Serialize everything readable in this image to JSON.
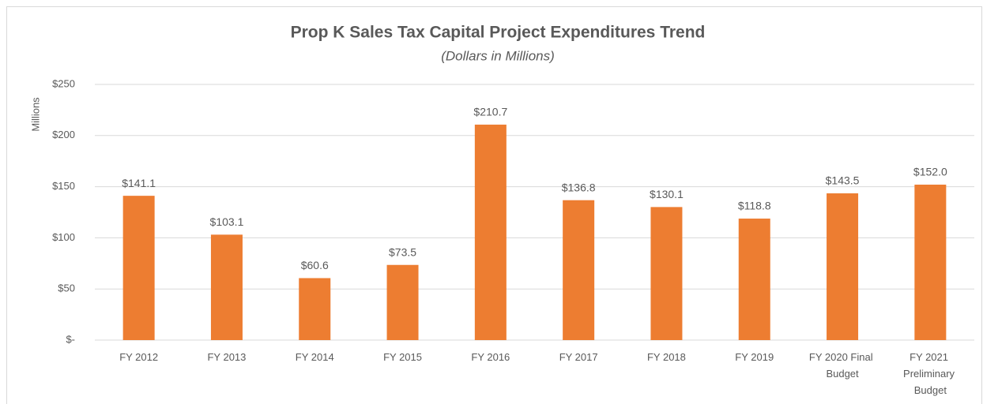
{
  "chart_data": {
    "type": "bar",
    "title": "Prop K Sales Tax Capital Project Expenditures Trend",
    "subtitle": "(Dollars in Millions)",
    "y_label": "Millions",
    "categories": [
      "FY 2012",
      "FY 2013",
      "FY 2014",
      "FY 2015",
      "FY 2016",
      "FY 2017",
      "FY 2018",
      "FY 2019",
      "FY 2020 Final Budget",
      "FY 2021 Preliminary Budget"
    ],
    "values": [
      141.1,
      103.1,
      60.6,
      73.5,
      210.7,
      136.8,
      130.1,
      118.8,
      143.5,
      152.0
    ],
    "value_labels": [
      "$141.1",
      "$103.1",
      "$60.6",
      "$73.5",
      "$210.7",
      "$136.8",
      "$130.1",
      "$118.8",
      "$143.5",
      "$152.0"
    ],
    "color": "#ed7d31",
    "ylim": [
      0,
      250
    ],
    "yticks": [
      {
        "value": 0,
        "label": "$-"
      },
      {
        "value": 50,
        "label": "$50"
      },
      {
        "value": 100,
        "label": "$100"
      },
      {
        "value": 150,
        "label": "$150"
      },
      {
        "value": 200,
        "label": "$200"
      },
      {
        "value": 250,
        "label": "$250"
      }
    ],
    "grid": true
  }
}
